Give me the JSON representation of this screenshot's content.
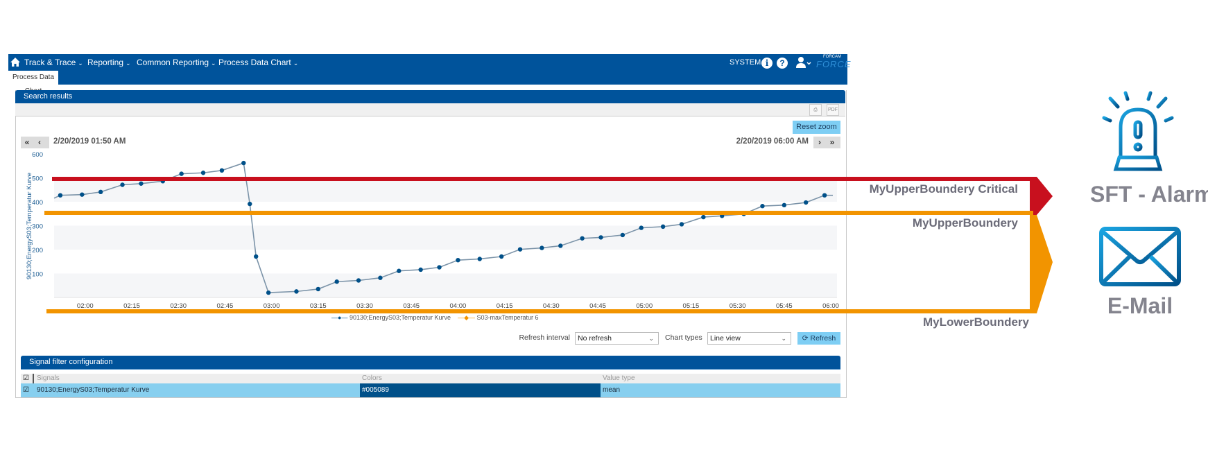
{
  "nav": {
    "items": [
      {
        "label": "Track & Trace"
      },
      {
        "label": "Reporting"
      },
      {
        "label": "Common Reporting"
      },
      {
        "label": "Process Data Chart"
      }
    ],
    "user": "SYSTEM",
    "logo_small": "FORCAM",
    "logo": "FORCE"
  },
  "tab": {
    "label": "Process Data Chart"
  },
  "search_panel": {
    "title": "Search results",
    "reset_zoom": "Reset zoom",
    "start_date": "2/20/2019 01:50 AM",
    "end_date": "2/20/2019 06:00 AM",
    "refresh_interval_label": "Refresh interval",
    "refresh_interval_value": "No refresh",
    "chart_types_label": "Chart types",
    "chart_types_value": "Line view",
    "refresh_button": "Refresh"
  },
  "chart_data": {
    "type": "line",
    "title": "",
    "xlabel": "",
    "ylabel": "90130;EnergyS03;Temperatur Kurve",
    "ylim": [
      0,
      600
    ],
    "xlim": [
      "01:50",
      "06:02"
    ],
    "yticks": [
      "100",
      "200",
      "300",
      "400",
      "500",
      "600"
    ],
    "xticks": [
      "02:00",
      "02:15",
      "02:30",
      "02:45",
      "03:00",
      "03:15",
      "03:30",
      "03:45",
      "04:00",
      "04:15",
      "04:30",
      "04:45",
      "05:00",
      "05:15",
      "05:30",
      "05:45",
      "06:00"
    ],
    "legend": [
      "90130;EnergyS03;Temperatur Kurve",
      "S03-maxTemperatur 6"
    ],
    "legend_position": "bottom",
    "series": [
      {
        "name": "90130;EnergyS03;Temperatur Kurve",
        "color": "#005089",
        "x": [
          "01:52",
          "01:59",
          "02:05",
          "02:12",
          "02:18",
          "02:25",
          "02:31",
          "02:38",
          "02:44",
          "02:51",
          "02:53",
          "02:55",
          "02:59",
          "03:08",
          "03:15",
          "03:21",
          "03:28",
          "03:35",
          "03:41",
          "03:48",
          "03:54",
          "04:00",
          "04:07",
          "04:14",
          "04:20",
          "04:27",
          "04:33",
          "04:40",
          "04:46",
          "04:53",
          "04:59",
          "05:06",
          "05:12",
          "05:19",
          "05:25",
          "05:32",
          "05:38",
          "05:45",
          "05:52",
          "05:58"
        ],
        "values": [
          427,
          430,
          441,
          471,
          476,
          486,
          517,
          521,
          531,
          562,
          391,
          171,
          20,
          25,
          35,
          66,
          71,
          82,
          111,
          116,
          126,
          156,
          161,
          171,
          201,
          207,
          216,
          247,
          251,
          261,
          291,
          296,
          306,
          336,
          341,
          349,
          382,
          386,
          397,
          427
        ]
      },
      {
        "name": "S03-maxTemperatur 6",
        "color": "#f29400",
        "x": [],
        "values": []
      }
    ]
  },
  "signal_panel": {
    "title": "Signal filter configuration",
    "columns": [
      "Signals",
      "Colors",
      "Value type"
    ],
    "rows": [
      {
        "signal": "90130;EnergyS03;Temperatur Kurve",
        "color": "#005089",
        "value_type": "mean"
      }
    ]
  },
  "annotations": {
    "upper_critical": "MyUpperBoundery Critical",
    "upper": "MyUpperBoundery",
    "lower": "MyLowerBoundery",
    "alarm_label": "SFT - Alarm",
    "email_label": "E-Mail",
    "critical_color": "#c8101e",
    "warning_color": "#f29400"
  }
}
